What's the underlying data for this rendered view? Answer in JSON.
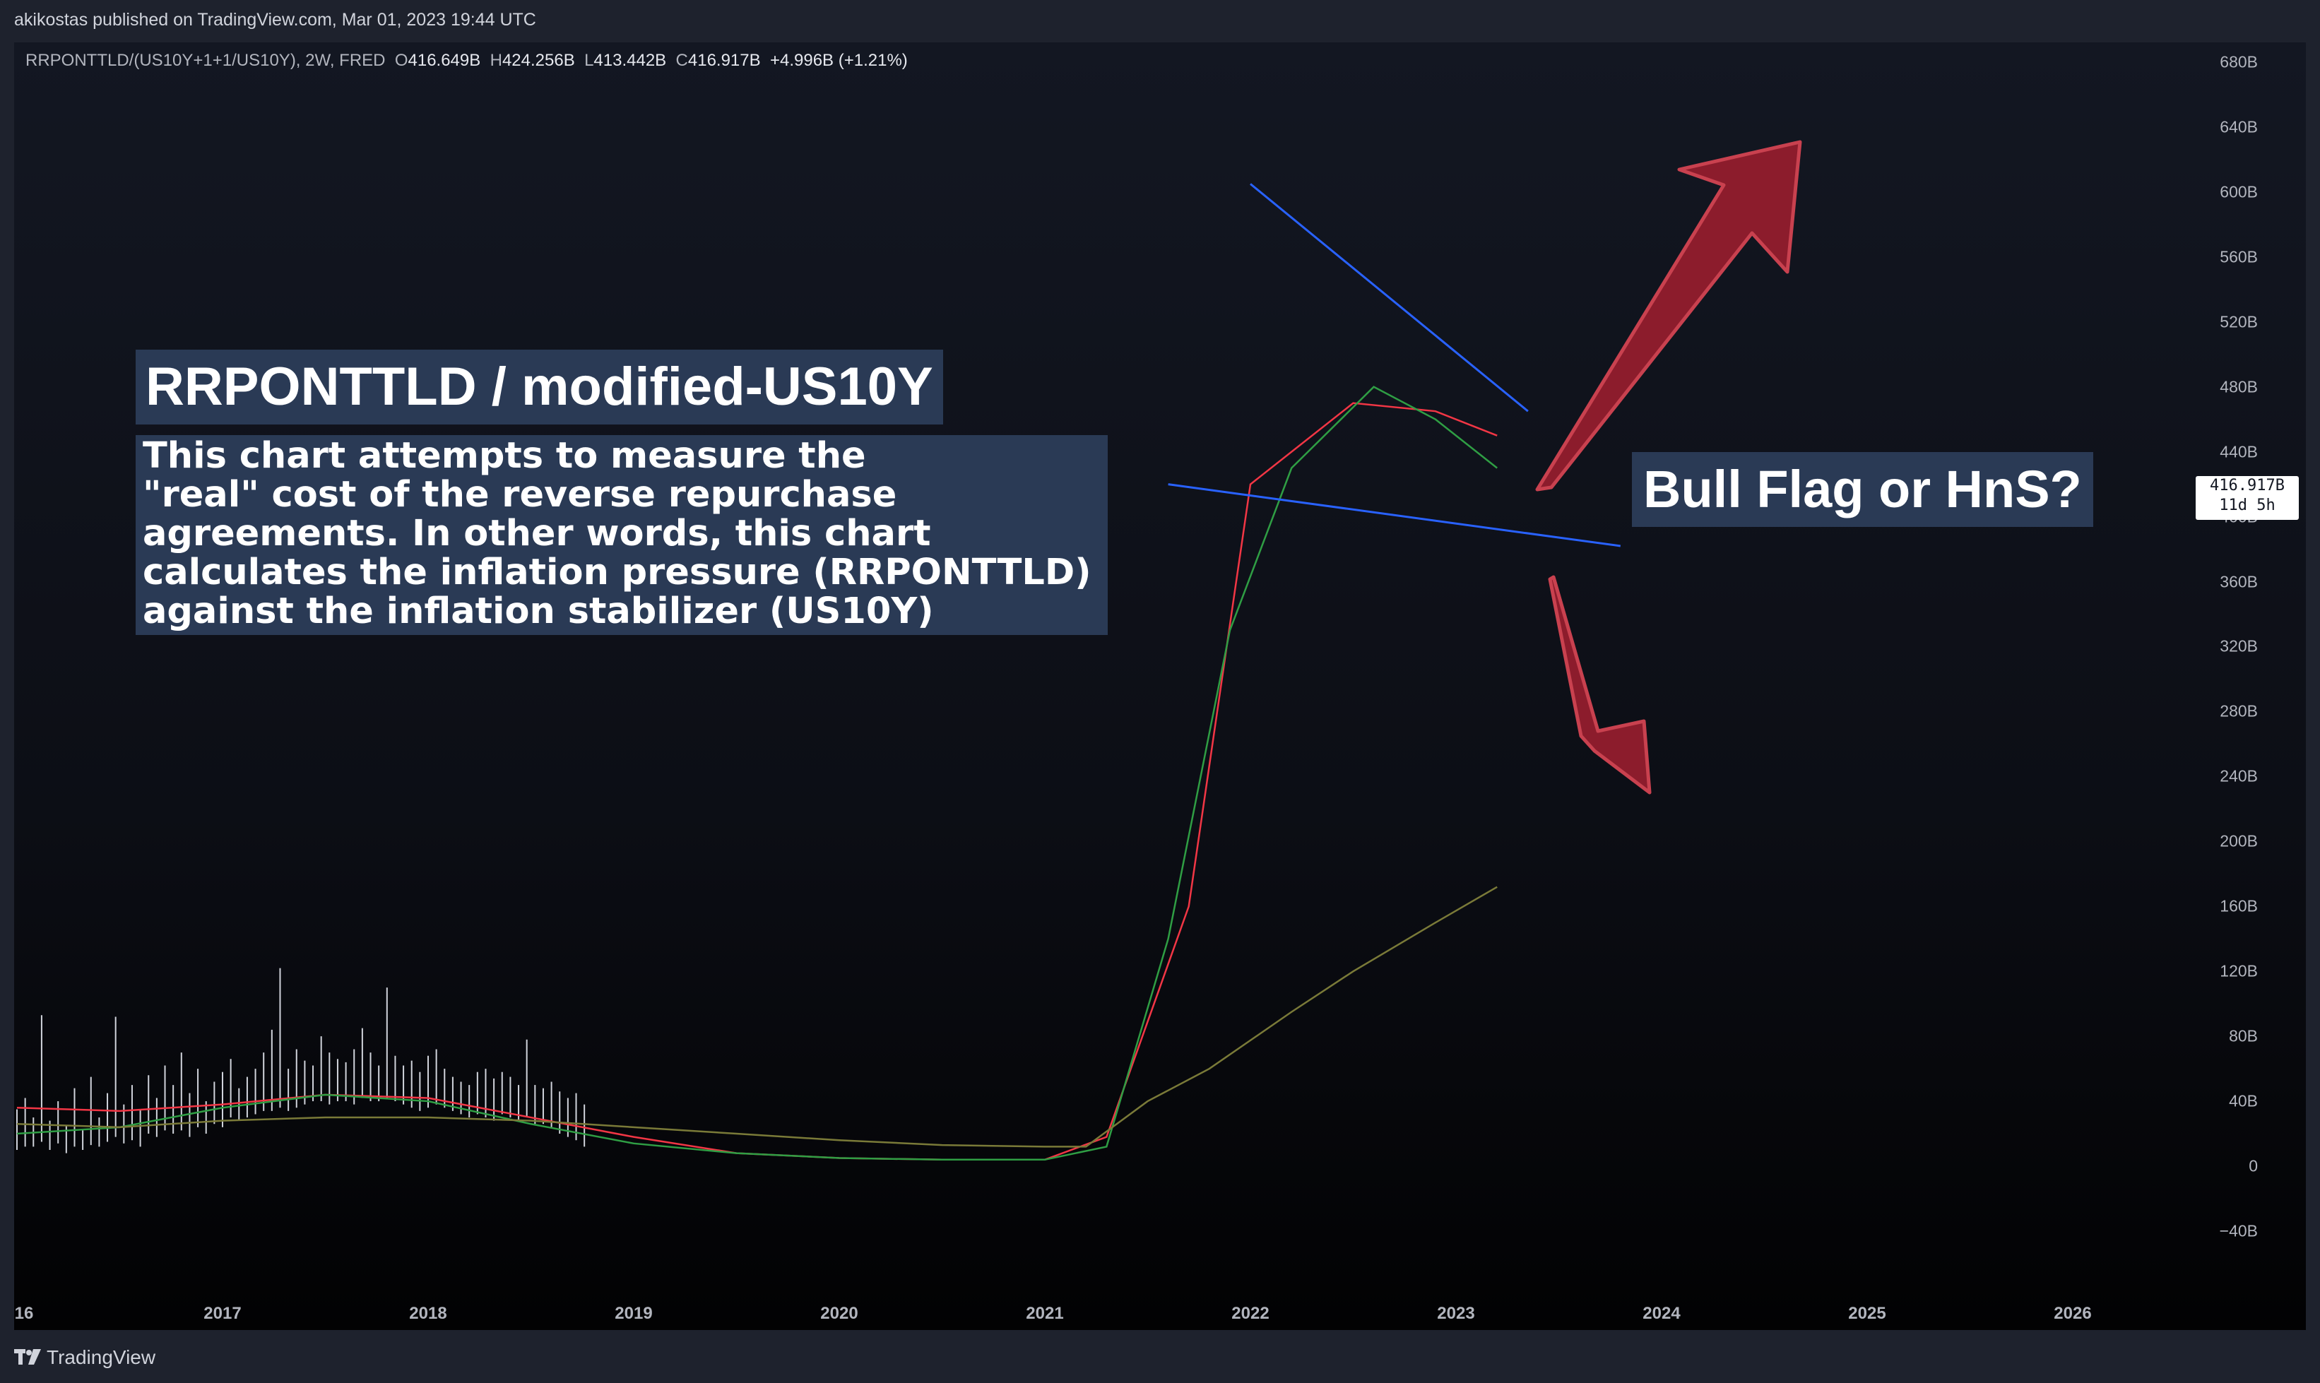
{
  "publisher_line": "akikostas published on TradingView.com, Mar 01, 2023 19:44 UTC",
  "symbol": {
    "name": "RRPONTTLD/(US10Y+1+1/US10Y), 2W, FRED",
    "open_label": "O",
    "open": "416.649B",
    "high_label": "H",
    "high": "424.256B",
    "low_label": "L",
    "low": "413.442B",
    "close_label": "C",
    "close": "416.917B",
    "change": "+4.996B (+1.21%)"
  },
  "price_badge": {
    "value": "416.917B",
    "countdown": "11d 5h"
  },
  "annotations": {
    "title": "RRPONTTLD / modified-US10Y",
    "description_lines": [
      "This chart attempts to measure the",
      "\"real\" cost of the reverse repurchase",
      "agreements. In other words, this chart",
      "calculates the inflation pressure (RRPONTTLD)",
      "against the inflation stabilizer (US10Y)"
    ],
    "question": "Bull Flag or HnS?"
  },
  "branding": {
    "logo": "tradingview-logo-icon",
    "name": "TradingView"
  },
  "colors": {
    "background": "#131722",
    "panel": "#1e222d",
    "candles": "#d1d4dc",
    "trendline": "#2962ff",
    "ma_fast": "#f23645",
    "ma_mid": "#2f9e44",
    "ma_slow": "#7a7a38",
    "arrow_fill": "#8c1c2c",
    "arrow_stroke": "#c9414f",
    "callout_bg": "#2a3a55"
  },
  "chart_data": {
    "type": "bar",
    "title": "RRPONTTLD/(US10Y+1+1/US10Y), 2W, FRED",
    "x_axis": {
      "ticks": [
        "16",
        "2017",
        "2018",
        "2019",
        "2020",
        "2021",
        "2022",
        "2023",
        "2024",
        "2025",
        "2026"
      ]
    },
    "y_axis": {
      "range": [
        -40,
        680
      ],
      "ticks": [
        "680B",
        "640B",
        "600B",
        "560B",
        "520B",
        "480B",
        "440B",
        "400B",
        "360B",
        "320B",
        "280B",
        "240B",
        "200B",
        "160B",
        "120B",
        "80B",
        "40B",
        "0",
        "−40B"
      ],
      "tick_values": [
        680,
        640,
        600,
        560,
        520,
        480,
        440,
        400,
        360,
        320,
        280,
        240,
        200,
        160,
        120,
        80,
        40,
        0,
        -40
      ],
      "unit": "B",
      "position": "right"
    },
    "ohlc_last": {
      "open": 416.649,
      "high": 424.256,
      "low": 413.442,
      "close": 416.917,
      "change": 4.996,
      "change_pct": 1.21
    },
    "price_bars": [
      [
        2016.0,
        35,
        10
      ],
      [
        2016.04,
        42,
        12
      ],
      [
        2016.08,
        30,
        12
      ],
      [
        2016.12,
        93,
        15
      ],
      [
        2016.16,
        28,
        10
      ],
      [
        2016.2,
        40,
        14
      ],
      [
        2016.24,
        25,
        8
      ],
      [
        2016.28,
        48,
        12
      ],
      [
        2016.32,
        22,
        10
      ],
      [
        2016.36,
        55,
        13
      ],
      [
        2016.4,
        30,
        12
      ],
      [
        2016.44,
        45,
        15
      ],
      [
        2016.48,
        92,
        18
      ],
      [
        2016.52,
        38,
        14
      ],
      [
        2016.56,
        50,
        16
      ],
      [
        2016.6,
        35,
        12
      ],
      [
        2016.64,
        56,
        20
      ],
      [
        2016.68,
        42,
        18
      ],
      [
        2016.72,
        62,
        22
      ],
      [
        2016.76,
        50,
        20
      ],
      [
        2016.8,
        70,
        22
      ],
      [
        2016.84,
        45,
        18
      ],
      [
        2016.88,
        60,
        24
      ],
      [
        2016.92,
        40,
        20
      ],
      [
        2016.96,
        52,
        26
      ],
      [
        2017.0,
        58,
        24
      ],
      [
        2017.04,
        66,
        30
      ],
      [
        2017.08,
        48,
        28
      ],
      [
        2017.12,
        55,
        30
      ],
      [
        2017.16,
        60,
        32
      ],
      [
        2017.2,
        70,
        34
      ],
      [
        2017.24,
        84,
        34
      ],
      [
        2017.28,
        122,
        36
      ],
      [
        2017.32,
        60,
        34
      ],
      [
        2017.36,
        72,
        36
      ],
      [
        2017.4,
        65,
        38
      ],
      [
        2017.44,
        62,
        40
      ],
      [
        2017.48,
        80,
        40
      ],
      [
        2017.52,
        70,
        38
      ],
      [
        2017.56,
        66,
        40
      ],
      [
        2017.6,
        64,
        40
      ],
      [
        2017.64,
        72,
        38
      ],
      [
        2017.68,
        85,
        42
      ],
      [
        2017.72,
        70,
        40
      ],
      [
        2017.76,
        62,
        40
      ],
      [
        2017.8,
        110,
        42
      ],
      [
        2017.84,
        68,
        40
      ],
      [
        2017.88,
        62,
        38
      ],
      [
        2017.92,
        65,
        36
      ],
      [
        2017.96,
        58,
        34
      ],
      [
        2018.0,
        68,
        36
      ],
      [
        2018.04,
        72,
        38
      ],
      [
        2018.08,
        60,
        36
      ],
      [
        2018.12,
        55,
        34
      ],
      [
        2018.16,
        52,
        32
      ],
      [
        2018.2,
        50,
        30
      ],
      [
        2018.24,
        58,
        32
      ],
      [
        2018.28,
        60,
        30
      ],
      [
        2018.32,
        54,
        28
      ],
      [
        2018.36,
        58,
        32
      ],
      [
        2018.4,
        55,
        30
      ],
      [
        2018.44,
        50,
        28
      ],
      [
        2018.48,
        78,
        30
      ],
      [
        2018.52,
        50,
        26
      ],
      [
        2018.56,
        48,
        26
      ],
      [
        2018.6,
        52,
        24
      ],
      [
        2018.64,
        46,
        20
      ],
      [
        2018.68,
        42,
        18
      ],
      [
        2018.72,
        45,
        16
      ],
      [
        2018.76,
        38,
        12
      ]
    ],
    "moving_averages": [
      {
        "color": "#f23645",
        "points": [
          [
            2016.0,
            36
          ],
          [
            2016.5,
            34
          ],
          [
            2017.0,
            38
          ],
          [
            2017.5,
            44
          ],
          [
            2018.0,
            42
          ],
          [
            2018.5,
            30
          ],
          [
            2019.0,
            18
          ],
          [
            2019.5,
            8
          ],
          [
            2020.0,
            5
          ],
          [
            2020.5,
            4
          ],
          [
            2021.0,
            4
          ],
          [
            2021.3,
            18
          ],
          [
            2021.7,
            160
          ],
          [
            2022.0,
            420
          ],
          [
            2022.5,
            470
          ],
          [
            2022.9,
            465
          ],
          [
            2023.2,
            450
          ]
        ]
      },
      {
        "color": "#2f9e44",
        "points": [
          [
            2016.0,
            20
          ],
          [
            2016.5,
            24
          ],
          [
            2017.0,
            36
          ],
          [
            2017.5,
            44
          ],
          [
            2018.0,
            40
          ],
          [
            2018.5,
            26
          ],
          [
            2019.0,
            14
          ],
          [
            2019.5,
            8
          ],
          [
            2020.0,
            5
          ],
          [
            2020.5,
            4
          ],
          [
            2021.0,
            4
          ],
          [
            2021.3,
            12
          ],
          [
            2021.6,
            140
          ],
          [
            2021.9,
            330
          ],
          [
            2022.2,
            430
          ],
          [
            2022.6,
            480
          ],
          [
            2022.9,
            460
          ],
          [
            2023.2,
            430
          ]
        ]
      },
      {
        "color": "#7a7a38",
        "points": [
          [
            2016.0,
            26
          ],
          [
            2016.5,
            24
          ],
          [
            2017.0,
            28
          ],
          [
            2017.5,
            30
          ],
          [
            2018.0,
            30
          ],
          [
            2018.5,
            28
          ],
          [
            2019.0,
            24
          ],
          [
            2019.5,
            20
          ],
          [
            2020.0,
            16
          ],
          [
            2020.5,
            13
          ],
          [
            2021.0,
            12
          ],
          [
            2021.2,
            12
          ],
          [
            2021.5,
            40
          ],
          [
            2021.8,
            60
          ],
          [
            2022.2,
            95
          ],
          [
            2022.5,
            120
          ],
          [
            2022.9,
            150
          ],
          [
            2023.2,
            172
          ]
        ]
      }
    ],
    "trendlines": [
      {
        "points": [
          [
            2022.0,
            605
          ],
          [
            2023.35,
            465
          ]
        ]
      },
      {
        "points": [
          [
            2021.6,
            420
          ],
          [
            2023.8,
            382
          ]
        ]
      }
    ],
    "legend": "none",
    "grid": false
  }
}
